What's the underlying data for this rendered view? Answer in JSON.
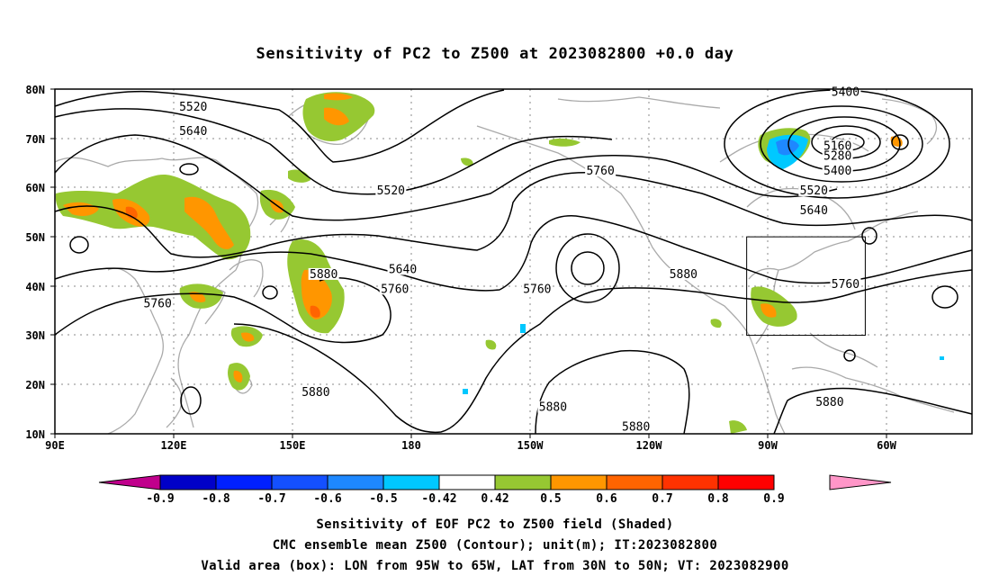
{
  "title": "Sensitivity of PC2 to Z500 at 2023082800 +0.0 day",
  "map": {
    "lat_labels": [
      "80N",
      "70N",
      "60N",
      "50N",
      "40N",
      "30N",
      "20N",
      "10N"
    ],
    "lon_labels": [
      "90E",
      "120E",
      "150E",
      "180",
      "150W",
      "120W",
      "90W",
      "60W"
    ],
    "lon_range": [
      90,
      322
    ],
    "lat_range": [
      10,
      80
    ],
    "valid_box": {
      "lon_west": -95,
      "lon_east": -65,
      "lat_south": 30,
      "lat_north": 50
    },
    "contour_labels": [
      {
        "text": "5520",
        "lon": 125,
        "lat": 76
      },
      {
        "text": "5640",
        "lon": 125,
        "lat": 71
      },
      {
        "text": "5520",
        "lon": 175,
        "lat": 59
      },
      {
        "text": "5640",
        "lon": 178,
        "lat": 43
      },
      {
        "text": "5880",
        "lon": 158,
        "lat": 42
      },
      {
        "text": "5760",
        "lon": 176,
        "lat": 39
      },
      {
        "text": "5760",
        "lon": 212,
        "lat": 39
      },
      {
        "text": "5760",
        "lon": 116,
        "lat": 36
      },
      {
        "text": "5880",
        "lon": 156,
        "lat": 18
      },
      {
        "text": "5880",
        "lon": 216,
        "lat": 15
      },
      {
        "text": "5880",
        "lon": 237,
        "lat": 11
      },
      {
        "text": "5880",
        "lon": 286,
        "lat": 16
      },
      {
        "text": "5880",
        "lon": 249,
        "lat": 42
      },
      {
        "text": "5760",
        "lon": 228,
        "lat": 63
      },
      {
        "text": "5400",
        "lon": 290,
        "lat": 79
      },
      {
        "text": "5160",
        "lon": 288,
        "lat": 68
      },
      {
        "text": "5280",
        "lon": 288,
        "lat": 66
      },
      {
        "text": "5400",
        "lon": 288,
        "lat": 63
      },
      {
        "text": "5520",
        "lon": 282,
        "lat": 59
      },
      {
        "text": "5640",
        "lon": 282,
        "lat": 55
      },
      {
        "text": "5760",
        "lon": 290,
        "lat": 40
      }
    ]
  },
  "colorbar": {
    "colors": [
      "#c0008c",
      "#0000c8",
      "#0020ff",
      "#1450ff",
      "#1e88ff",
      "#00c8ff",
      "#ffffff",
      "#96c832",
      "#ff9600",
      "#ff6400",
      "#ff3200",
      "#ff0000",
      "#ff96c8"
    ],
    "labels": [
      "-0.9",
      "-0.8",
      "-0.7",
      "-0.6",
      "-0.5",
      "-0.42",
      "0.42",
      "0.5",
      "0.6",
      "0.7",
      "0.8",
      "0.9"
    ]
  },
  "captions": {
    "line1": "Sensitivity of EOF PC2 to Z500 field (Shaded)",
    "line2": "CMC ensemble mean Z500 (Contour); unit(m); IT:2023082800",
    "line3": "Valid area (box): LON from 95W to 65W, LAT from 30N to 50N; VT: 2023082900"
  }
}
